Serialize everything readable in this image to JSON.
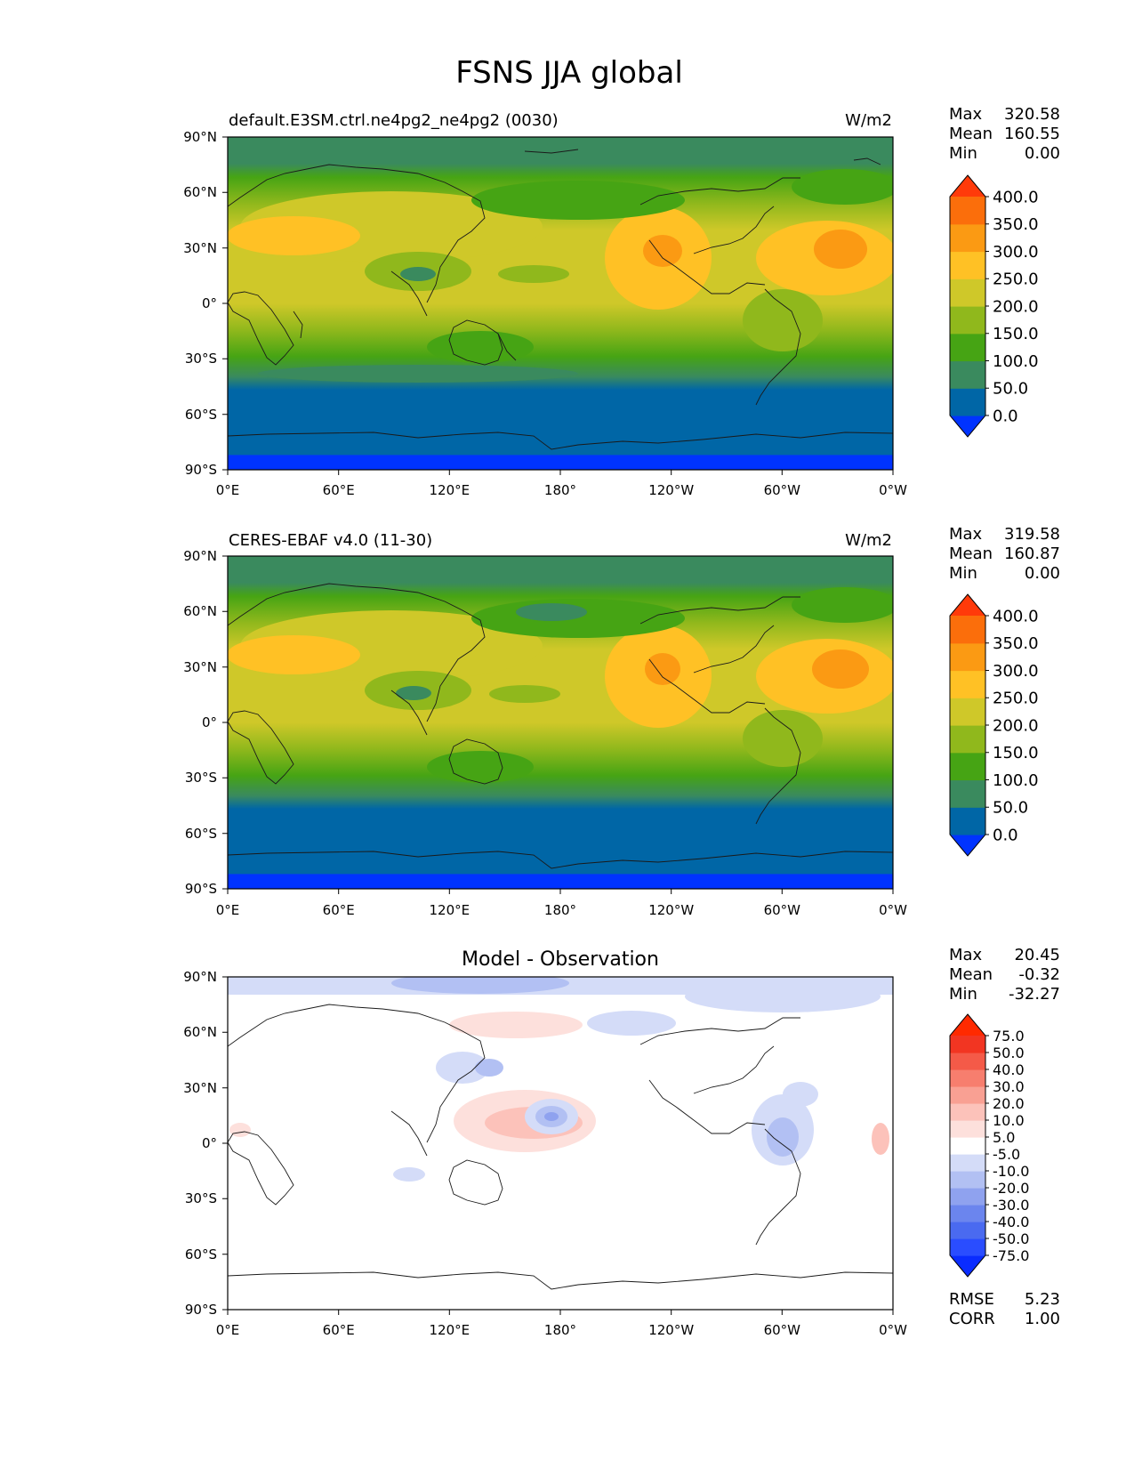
{
  "figure": {
    "title": "FSNS JJA global"
  },
  "chart_data": [
    {
      "type": "heatmap",
      "title": "default.E3SM.ctrl.ne4pg2_ne4pg2 (0030)",
      "units": "W/m2",
      "x_ticks": [
        "0°E",
        "60°E",
        "120°E",
        "180°",
        "120°W",
        "60°W",
        "0°W"
      ],
      "y_ticks": [
        "90°N",
        "60°N",
        "30°N",
        "0°",
        "30°S",
        "60°S",
        "90°S"
      ],
      "stats": [
        {
          "label": "Max",
          "value": "320.58"
        },
        {
          "label": "Mean",
          "value": "160.55"
        },
        {
          "label": "Min",
          "value": "0.00"
        }
      ],
      "colorbar": {
        "levels": [
          "400.0",
          "350.0",
          "300.0",
          "250.0",
          "200.0",
          "150.0",
          "100.0",
          "50.0",
          "0.0"
        ],
        "colors": [
          "#0033ff",
          "#0066a6",
          "#3a8a5e",
          "#46a414",
          "#90b81c",
          "#cfc829",
          "#ffc125",
          "#fb9a13",
          "#fb6e0b",
          "#ff3a0a"
        ]
      }
    },
    {
      "type": "heatmap",
      "title": "CERES-EBAF v4.0 (11-30)",
      "units": "W/m2",
      "x_ticks": [
        "0°E",
        "60°E",
        "120°E",
        "180°",
        "120°W",
        "60°W",
        "0°W"
      ],
      "y_ticks": [
        "90°N",
        "60°N",
        "30°N",
        "0°",
        "30°S",
        "60°S",
        "90°S"
      ],
      "stats": [
        {
          "label": "Max",
          "value": "319.58"
        },
        {
          "label": "Mean",
          "value": "160.87"
        },
        {
          "label": "Min",
          "value": "0.00"
        }
      ],
      "colorbar": {
        "levels": [
          "400.0",
          "350.0",
          "300.0",
          "250.0",
          "200.0",
          "150.0",
          "100.0",
          "50.0",
          "0.0"
        ],
        "colors": [
          "#0033ff",
          "#0066a6",
          "#3a8a5e",
          "#46a414",
          "#90b81c",
          "#cfc829",
          "#ffc125",
          "#fb9a13",
          "#fb6e0b",
          "#ff3a0a"
        ]
      }
    },
    {
      "type": "heatmap",
      "title": "Model - Observation",
      "units": "",
      "x_ticks": [
        "0°E",
        "60°E",
        "120°E",
        "180°",
        "120°W",
        "60°W",
        "0°W"
      ],
      "y_ticks": [
        "90°N",
        "60°N",
        "30°N",
        "0°",
        "30°S",
        "60°S",
        "90°S"
      ],
      "stats": [
        {
          "label": "Max",
          "value": "20.45"
        },
        {
          "label": "Mean",
          "value": "-0.32"
        },
        {
          "label": "Min",
          "value": "-32.27"
        }
      ],
      "extra_stats": [
        {
          "label": "RMSE",
          "value": "5.23"
        },
        {
          "label": "CORR",
          "value": "1.00"
        }
      ],
      "colorbar": {
        "levels": [
          "75.0",
          "50.0",
          "40.0",
          "30.0",
          "20.0",
          "10.0",
          "5.0",
          "-5.0",
          "-10.0",
          "-20.0",
          "-30.0",
          "-40.0",
          "-50.0",
          "-75.0"
        ],
        "colors": [
          "#0a2cff",
          "#2a4dff",
          "#4a6af0",
          "#6b85ee",
          "#8fa2ef",
          "#b2c0f3",
          "#d4dcf8",
          "#ffffff",
          "#fde0dc",
          "#fcc2ba",
          "#f9a093",
          "#f77e6e",
          "#f45a48",
          "#f23522",
          "#ff2a00"
        ]
      }
    }
  ]
}
